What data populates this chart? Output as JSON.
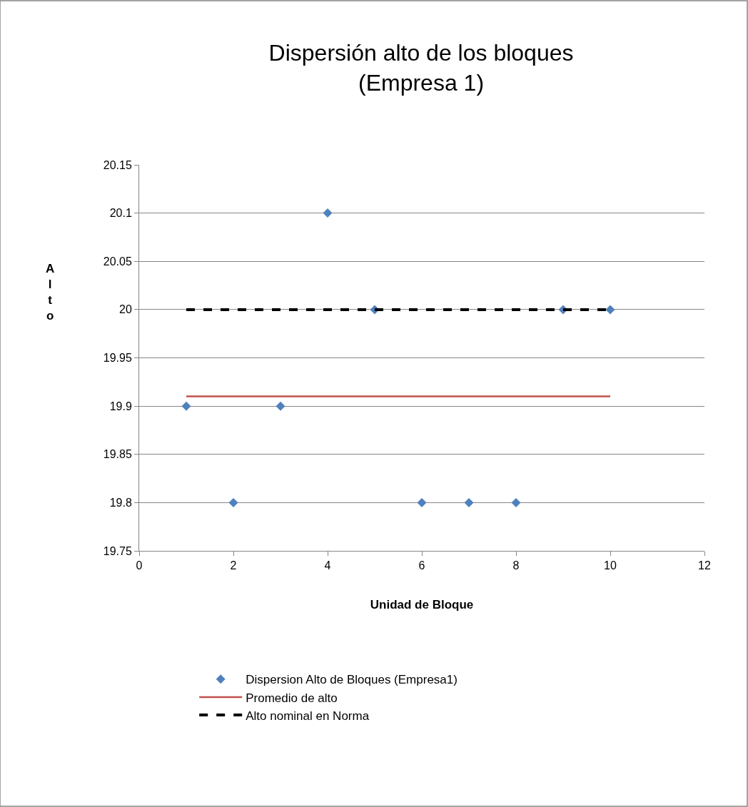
{
  "chart_data": {
    "type": "scatter",
    "title": "Dispersión alto de los bloques\n(Empresa 1)",
    "xlabel": "Unidad de Bloque",
    "ylabel": "Alto",
    "x": [
      1,
      2,
      3,
      4,
      5,
      6,
      7,
      8,
      9,
      10
    ],
    "series": [
      {
        "name": "Dispersion Alto de Bloques (Empresa1)",
        "color": "#4f81bd",
        "marker": "diamond",
        "values": [
          19.9,
          19.8,
          19.9,
          20.1,
          20.0,
          19.8,
          19.8,
          19.8,
          20.0,
          20.0
        ]
      },
      {
        "name": "Promedio de alto",
        "color": "#c0504d",
        "type": "line",
        "line_style": "solid",
        "values": [
          19.91,
          19.91,
          19.91,
          19.91,
          19.91,
          19.91,
          19.91,
          19.91,
          19.91,
          19.91
        ]
      },
      {
        "name": "Alto nominal en Norma",
        "color": "#000000",
        "type": "line",
        "line_style": "dashed",
        "values": [
          20,
          20,
          20,
          20,
          20,
          20,
          20,
          20,
          20,
          20
        ]
      }
    ],
    "xlim": [
      0,
      12
    ],
    "xticks": [
      0,
      2,
      4,
      6,
      8,
      10,
      12
    ],
    "ylim": [
      19.75,
      20.15
    ],
    "yticks": [
      19.75,
      19.8,
      19.85,
      19.9,
      19.95,
      20,
      20.05,
      20.1,
      20.15
    ],
    "grid": "y",
    "legend": "bottom"
  }
}
